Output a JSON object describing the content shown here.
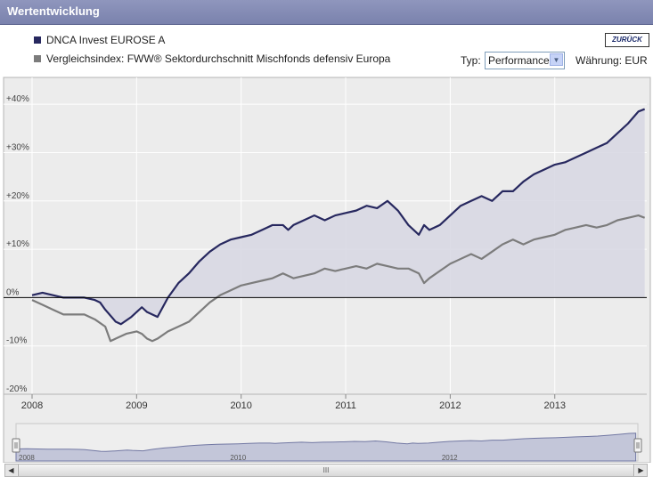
{
  "header": {
    "title": "Wertentwicklung",
    "back_label": "ZURÜCK"
  },
  "controls": {
    "typ_label": "Typ:",
    "typ_value": "Performance",
    "waehrung_label": "Währung: EUR"
  },
  "colors": {
    "fund": "#27285f",
    "index": "#7c7c7c",
    "area": "#d8d8e3",
    "background": "#ececec",
    "grid": "#ffffff"
  },
  "chart_data": {
    "type": "line",
    "x_unit": "year",
    "xlim": [
      2008.0,
      2013.88
    ],
    "ylim": [
      -20,
      45
    ],
    "y_ticks": [
      -20,
      -10,
      0,
      10,
      20,
      30,
      40
    ],
    "y_tick_labels": [
      "-20%",
      "-10%",
      "0%",
      "+10%",
      "+20%",
      "+30%",
      "+40%"
    ],
    "x_ticks": [
      2008,
      2009,
      2010,
      2011,
      2012,
      2013
    ],
    "x_tick_labels": [
      "2008",
      "2009",
      "2010",
      "2011",
      "2012",
      "2013"
    ],
    "grid": true,
    "legend_position": "top-left",
    "series": [
      {
        "name": "DNCA Invest EUROSE A",
        "x": [
          2008.0,
          2008.1,
          2008.2,
          2008.3,
          2008.4,
          2008.5,
          2008.6,
          2008.65,
          2008.7,
          2008.8,
          2008.85,
          2008.95,
          2009.05,
          2009.1,
          2009.15,
          2009.2,
          2009.3,
          2009.4,
          2009.5,
          2009.6,
          2009.7,
          2009.8,
          2009.9,
          2010.0,
          2010.1,
          2010.2,
          2010.3,
          2010.4,
          2010.45,
          2010.5,
          2010.6,
          2010.7,
          2010.8,
          2010.9,
          2011.0,
          2011.1,
          2011.2,
          2011.3,
          2011.4,
          2011.45,
          2011.5,
          2011.6,
          2011.7,
          2011.75,
          2011.8,
          2011.9,
          2012.0,
          2012.1,
          2012.2,
          2012.3,
          2012.4,
          2012.5,
          2012.6,
          2012.7,
          2012.8,
          2012.9,
          2013.0,
          2013.1,
          2013.2,
          2013.3,
          2013.4,
          2013.5,
          2013.6,
          2013.7,
          2013.8,
          2013.86
        ],
        "values": [
          0.5,
          1,
          0.5,
          0,
          0,
          0,
          -0.5,
          -1,
          -2.5,
          -5,
          -5.5,
          -4,
          -2,
          -3,
          -3.5,
          -4,
          0,
          3,
          5,
          7.5,
          9.5,
          11,
          12,
          12.5,
          13,
          14,
          15,
          15,
          14,
          15,
          16,
          17,
          16,
          17,
          17.5,
          18,
          19,
          18.5,
          20,
          19,
          18,
          15,
          13,
          15,
          14,
          15,
          17,
          19,
          20,
          21,
          20,
          22,
          22,
          24,
          25.5,
          26.5,
          27.5,
          28,
          29,
          30,
          31,
          32,
          34,
          36,
          38.5,
          39
        ]
      },
      {
        "name": "Vergleichsindex: FWW® Sektordurchschnitt Mischfonds defensiv Europa",
        "x": [
          2008.0,
          2008.1,
          2008.2,
          2008.3,
          2008.4,
          2008.5,
          2008.6,
          2008.7,
          2008.75,
          2008.8,
          2008.9,
          2009.0,
          2009.05,
          2009.1,
          2009.15,
          2009.2,
          2009.3,
          2009.4,
          2009.5,
          2009.6,
          2009.7,
          2009.8,
          2009.9,
          2010.0,
          2010.1,
          2010.2,
          2010.3,
          2010.4,
          2010.5,
          2010.6,
          2010.7,
          2010.8,
          2010.9,
          2011.0,
          2011.1,
          2011.2,
          2011.3,
          2011.4,
          2011.5,
          2011.6,
          2011.7,
          2011.75,
          2011.8,
          2011.9,
          2012.0,
          2012.1,
          2012.2,
          2012.3,
          2012.4,
          2012.5,
          2012.6,
          2012.7,
          2012.8,
          2012.9,
          2013.0,
          2013.1,
          2013.2,
          2013.3,
          2013.4,
          2013.5,
          2013.6,
          2013.7,
          2013.8,
          2013.86
        ],
        "values": [
          -0.5,
          -1.5,
          -2.5,
          -3.5,
          -3.5,
          -3.5,
          -4.5,
          -6,
          -9,
          -8.5,
          -7.5,
          -7,
          -7.5,
          -8.5,
          -9,
          -8.5,
          -7,
          -6,
          -5,
          -3,
          -1,
          0.5,
          1.5,
          2.5,
          3,
          3.5,
          4,
          5,
          4,
          4.5,
          5,
          6,
          5.5,
          6,
          6.5,
          6,
          7,
          6.5,
          6,
          6,
          5,
          3,
          4,
          5.5,
          7,
          8,
          9,
          8,
          9.5,
          11,
          12,
          11,
          12,
          12.5,
          13,
          14,
          14.5,
          15,
          14.5,
          15,
          16,
          16.5,
          17,
          16.5
        ]
      }
    ]
  },
  "navigator": {
    "labels": [
      "2008",
      "2010",
      "2012"
    ]
  }
}
